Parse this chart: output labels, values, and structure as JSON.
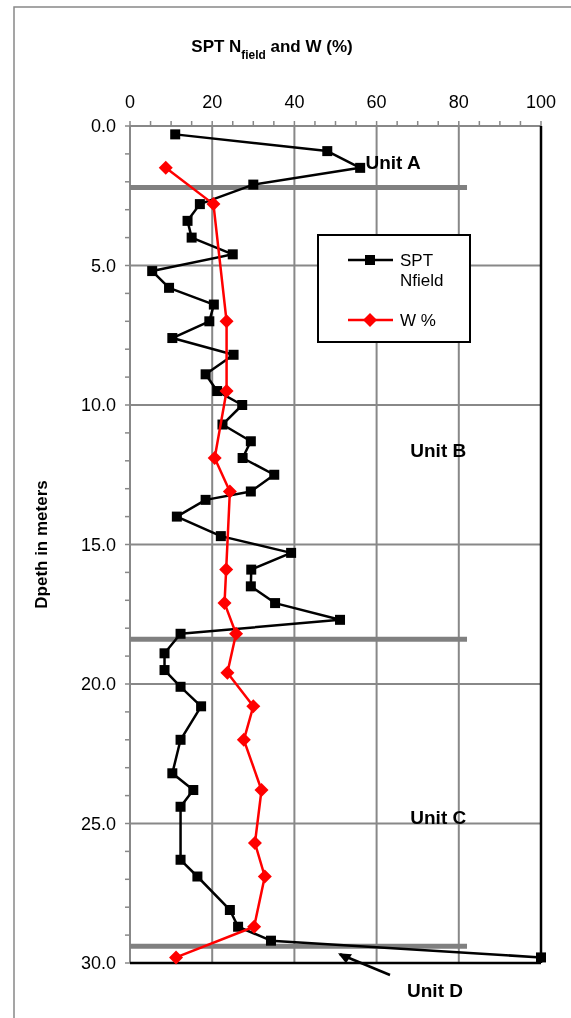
{
  "chart_data": {
    "type": "line",
    "xlabel": "SPT N$_{field}$ and W (%)",
    "ylabel": "Dpeth in meters",
    "xlim": [
      0,
      100
    ],
    "xticks": [
      0,
      {
        "value": 5,
        "label": null
      },
      20,
      {
        "value": 10,
        "label": null
      },
      {
        "value": 15,
        "label": null
      },
      {
        "value": 25,
        "label": null
      },
      {
        "value": 30,
        "label": null
      },
      {
        "value": 35,
        "label": null
      },
      40,
      {
        "value": 45,
        "label": null
      },
      {
        "value": 50,
        "label": null
      },
      {
        "value": 55,
        "label": null
      },
      60,
      {
        "value": 65,
        "label": null
      },
      {
        "value": 70,
        "label": null
      },
      {
        "value": 75,
        "label": null
      },
      80,
      {
        "value": 85,
        "label": null
      },
      {
        "value": 90,
        "label": null
      },
      {
        "value": 95,
        "label": null
      },
      100
    ],
    "ylim": [
      30,
      0
    ],
    "yticks": [
      {
        "value": 0,
        "label": "0.0"
      },
      {
        "value": 5,
        "label": "5.0"
      },
      {
        "value": 10,
        "label": "10.0"
      },
      {
        "value": 15,
        "label": "15.0"
      },
      {
        "value": 20,
        "label": "20.0"
      },
      {
        "value": 25,
        "label": "25.0"
      },
      {
        "value": 30,
        "label": "30.0"
      },
      {
        "value": 1,
        "label": null
      },
      {
        "value": 2,
        "label": null
      },
      {
        "value": 3,
        "label": null
      },
      {
        "value": 4,
        "label": null
      },
      {
        "value": 6,
        "label": null
      },
      {
        "value": 7,
        "label": null
      },
      {
        "value": 8,
        "label": null
      },
      {
        "value": 9,
        "label": null
      },
      {
        "value": 11,
        "label": null
      },
      {
        "value": 12,
        "label": null
      },
      {
        "value": 13,
        "label": null
      },
      {
        "value": 14,
        "label": null
      },
      {
        "value": 16,
        "label": null
      },
      {
        "value": 17,
        "label": null
      },
      {
        "value": 18,
        "label": null
      },
      {
        "value": 19,
        "label": null
      },
      {
        "value": 21,
        "label": null
      },
      {
        "value": 22,
        "label": null
      },
      {
        "value": 23,
        "label": null
      },
      {
        "value": 24,
        "label": null
      },
      {
        "value": 26,
        "label": null
      },
      {
        "value": 27,
        "label": null
      },
      {
        "value": 28,
        "label": null
      },
      {
        "value": 29,
        "label": null
      }
    ],
    "grid": true,
    "legend": "top right",
    "line_style": "solid",
    "series": [
      {
        "name": "SPT Nfield",
        "color": "#000000",
        "marker": "square",
        "x": [
          11,
          48,
          56,
          30,
          17,
          14,
          15,
          25,
          5.4,
          9.5,
          20.4,
          19.3,
          10.3,
          25.2,
          18.4,
          21.2,
          27.3,
          22.5,
          29.4,
          27.4,
          35.1,
          29.4,
          18.4,
          11.4,
          22.1,
          39.2,
          29.5,
          29.4,
          35.3,
          51.1,
          12.3,
          8.4,
          8.4,
          12.3,
          17.3,
          12.3,
          10.3,
          15.4,
          12.3,
          12.3,
          16.4,
          24.3,
          26.3,
          34.3,
          100
        ],
        "values": [
          0.3,
          0.9,
          1.5,
          2.1,
          2.8,
          3.4,
          4.0,
          4.6,
          5.2,
          5.8,
          6.4,
          7.0,
          7.6,
          8.2,
          8.9,
          9.5,
          10.0,
          10.7,
          11.3,
          11.9,
          12.5,
          13.1,
          13.4,
          14.0,
          14.7,
          15.3,
          15.9,
          16.5,
          17.1,
          17.7,
          18.2,
          18.9,
          19.5,
          20.1,
          20.8,
          22.0,
          23.2,
          23.8,
          24.4,
          26.3,
          26.9,
          28.1,
          28.7,
          29.2,
          29.8
        ]
      },
      {
        "name": "W %",
        "color": "#ff0000",
        "marker": "diamond",
        "x": [
          8.7,
          20.3,
          23.5,
          23.5,
          20.6,
          24.3,
          23.4,
          23.0,
          25.8,
          23.7,
          30.0,
          27.7,
          32.0,
          30.4,
          32.8,
          30.2,
          11.2
        ],
        "values": [
          1.5,
          2.8,
          7.0,
          9.5,
          11.9,
          13.1,
          15.9,
          17.1,
          18.2,
          19.6,
          20.8,
          22.0,
          23.8,
          25.7,
          26.9,
          28.7,
          29.8
        ]
      }
    ],
    "ref_lines": [
      {
        "axis": "y",
        "value": 2.2,
        "color": "#808080"
      },
      {
        "axis": "y",
        "value": 18.4,
        "color": "#808080"
      },
      {
        "axis": "y",
        "value": 29.4,
        "color": "#808080"
      }
    ],
    "annotations": [
      "Unit A",
      "Unit B",
      "Unit C",
      "Unit D"
    ]
  }
}
